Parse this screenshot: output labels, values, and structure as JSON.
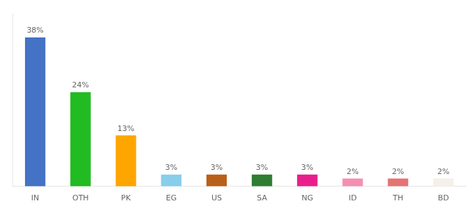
{
  "chart_data": {
    "type": "bar",
    "categories": [
      "IN",
      "OTH",
      "PK",
      "EG",
      "US",
      "SA",
      "NG",
      "ID",
      "TH",
      "BD"
    ],
    "values": [
      38,
      24,
      13,
      3,
      3,
      3,
      3,
      2,
      2,
      2
    ],
    "value_labels": [
      "38%",
      "24%",
      "13%",
      "3%",
      "3%",
      "3%",
      "3%",
      "2%",
      "2%",
      "2%"
    ],
    "colors": [
      "#4472c4",
      "#22bb22",
      "#ffa500",
      "#87ceeb",
      "#b8601a",
      "#2e7d32",
      "#e91e8c",
      "#f48fb1",
      "#e57373",
      "#f5f0e8"
    ],
    "ylim": [
      0,
      44
    ],
    "grid": false,
    "data_labels": true,
    "tick_labels": "x"
  }
}
